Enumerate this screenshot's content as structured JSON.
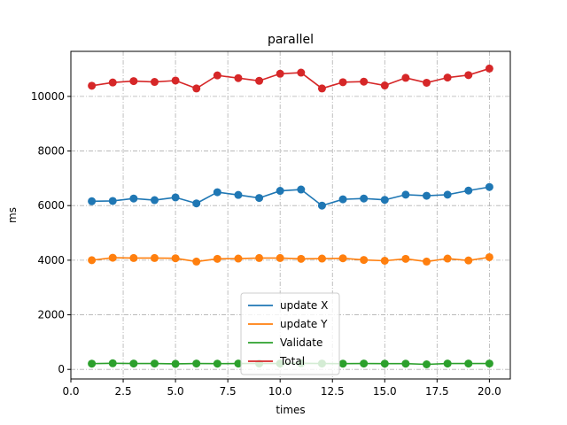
{
  "chart_data": {
    "type": "line",
    "title": "parallel",
    "xlabel": "times",
    "ylabel": "ms",
    "xlim": [
      0,
      21
    ],
    "ylim": [
      -350,
      11650
    ],
    "xticks": [
      0.0,
      2.5,
      5.0,
      7.5,
      10.0,
      12.5,
      15.0,
      17.5,
      20.0
    ],
    "xtick_labels": [
      "0.0",
      "2.5",
      "5.0",
      "7.5",
      "10.0",
      "12.5",
      "15.0",
      "17.5",
      "20.0"
    ],
    "yticks": [
      0,
      2000,
      4000,
      6000,
      8000,
      10000
    ],
    "ytick_labels": [
      "0",
      "2000",
      "4000",
      "6000",
      "8000",
      "10000"
    ],
    "grid": true,
    "legend_position": "lower-center",
    "x": [
      1,
      2,
      3,
      4,
      5,
      6,
      7,
      8,
      9,
      10,
      11,
      12,
      13,
      14,
      15,
      16,
      17,
      18,
      19,
      20
    ],
    "series": [
      {
        "name": "update X",
        "color": "#1f77b4",
        "values": [
          6160,
          6170,
          6260,
          6200,
          6300,
          6080,
          6490,
          6390,
          6280,
          6540,
          6590,
          6000,
          6230,
          6260,
          6210,
          6400,
          6360,
          6400,
          6550,
          6680
        ]
      },
      {
        "name": "update Y",
        "color": "#ff7f0e",
        "values": [
          4000,
          4090,
          4080,
          4080,
          4070,
          3950,
          4050,
          4060,
          4080,
          4080,
          4050,
          4060,
          4070,
          4010,
          3980,
          4050,
          3950,
          4060,
          3990,
          4110
        ]
      },
      {
        "name": "Validate",
        "color": "#2ca02c",
        "values": [
          210,
          225,
          215,
          215,
          205,
          215,
          210,
          215,
          215,
          215,
          225,
          215,
          210,
          215,
          210,
          210,
          185,
          215,
          215,
          215
        ]
      },
      {
        "name": "Total",
        "color": "#d62728",
        "values": [
          10390,
          10510,
          10560,
          10530,
          10580,
          10290,
          10770,
          10670,
          10570,
          10830,
          10870,
          10290,
          10520,
          10540,
          10400,
          10680,
          10500,
          10690,
          10780,
          11020
        ]
      }
    ]
  }
}
